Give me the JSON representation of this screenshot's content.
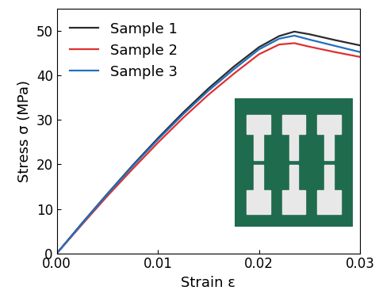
{
  "chart_data": {
    "type": "line",
    "x_label": "Strain ε",
    "y_label": "Stress σ (MPa)",
    "x": [
      0,
      0.0025,
      0.005,
      0.0075,
      0.01,
      0.0125,
      0.015,
      0.0175,
      0.02,
      0.022,
      0.0235,
      0.025,
      0.0275,
      0.03
    ],
    "series": [
      {
        "name": "Sample 1",
        "color": "#2b2b2b",
        "values": [
          0,
          6.8,
          13.4,
          19.8,
          25.9,
          31.7,
          37.1,
          42.0,
          46.4,
          48.9,
          49.9,
          49.3,
          48.0,
          46.8
        ]
      },
      {
        "name": "Sample 2",
        "color": "#e03030",
        "values": [
          0,
          6.5,
          12.9,
          19.0,
          24.9,
          30.5,
          35.7,
          40.4,
          44.8,
          47.0,
          47.3,
          46.5,
          45.3,
          44.2
        ]
      },
      {
        "name": "Sample 3",
        "color": "#2070c0",
        "values": [
          0,
          6.7,
          13.3,
          19.6,
          25.6,
          31.3,
          36.6,
          41.4,
          45.9,
          48.3,
          49.0,
          48.1,
          46.7,
          45.3
        ]
      }
    ],
    "xlim": [
      0,
      0.03
    ],
    "xticks": [
      {
        "value": 0,
        "label": "0.00"
      },
      {
        "value": 0.01,
        "label": "0.01"
      },
      {
        "value": 0.02,
        "label": "0.02"
      },
      {
        "value": 0.03,
        "label": "0.03"
      }
    ],
    "ylim": [
      0,
      55
    ],
    "yticks": [
      0,
      10,
      20,
      30,
      40,
      50
    ],
    "grid": false,
    "legend": "upper left"
  }
}
